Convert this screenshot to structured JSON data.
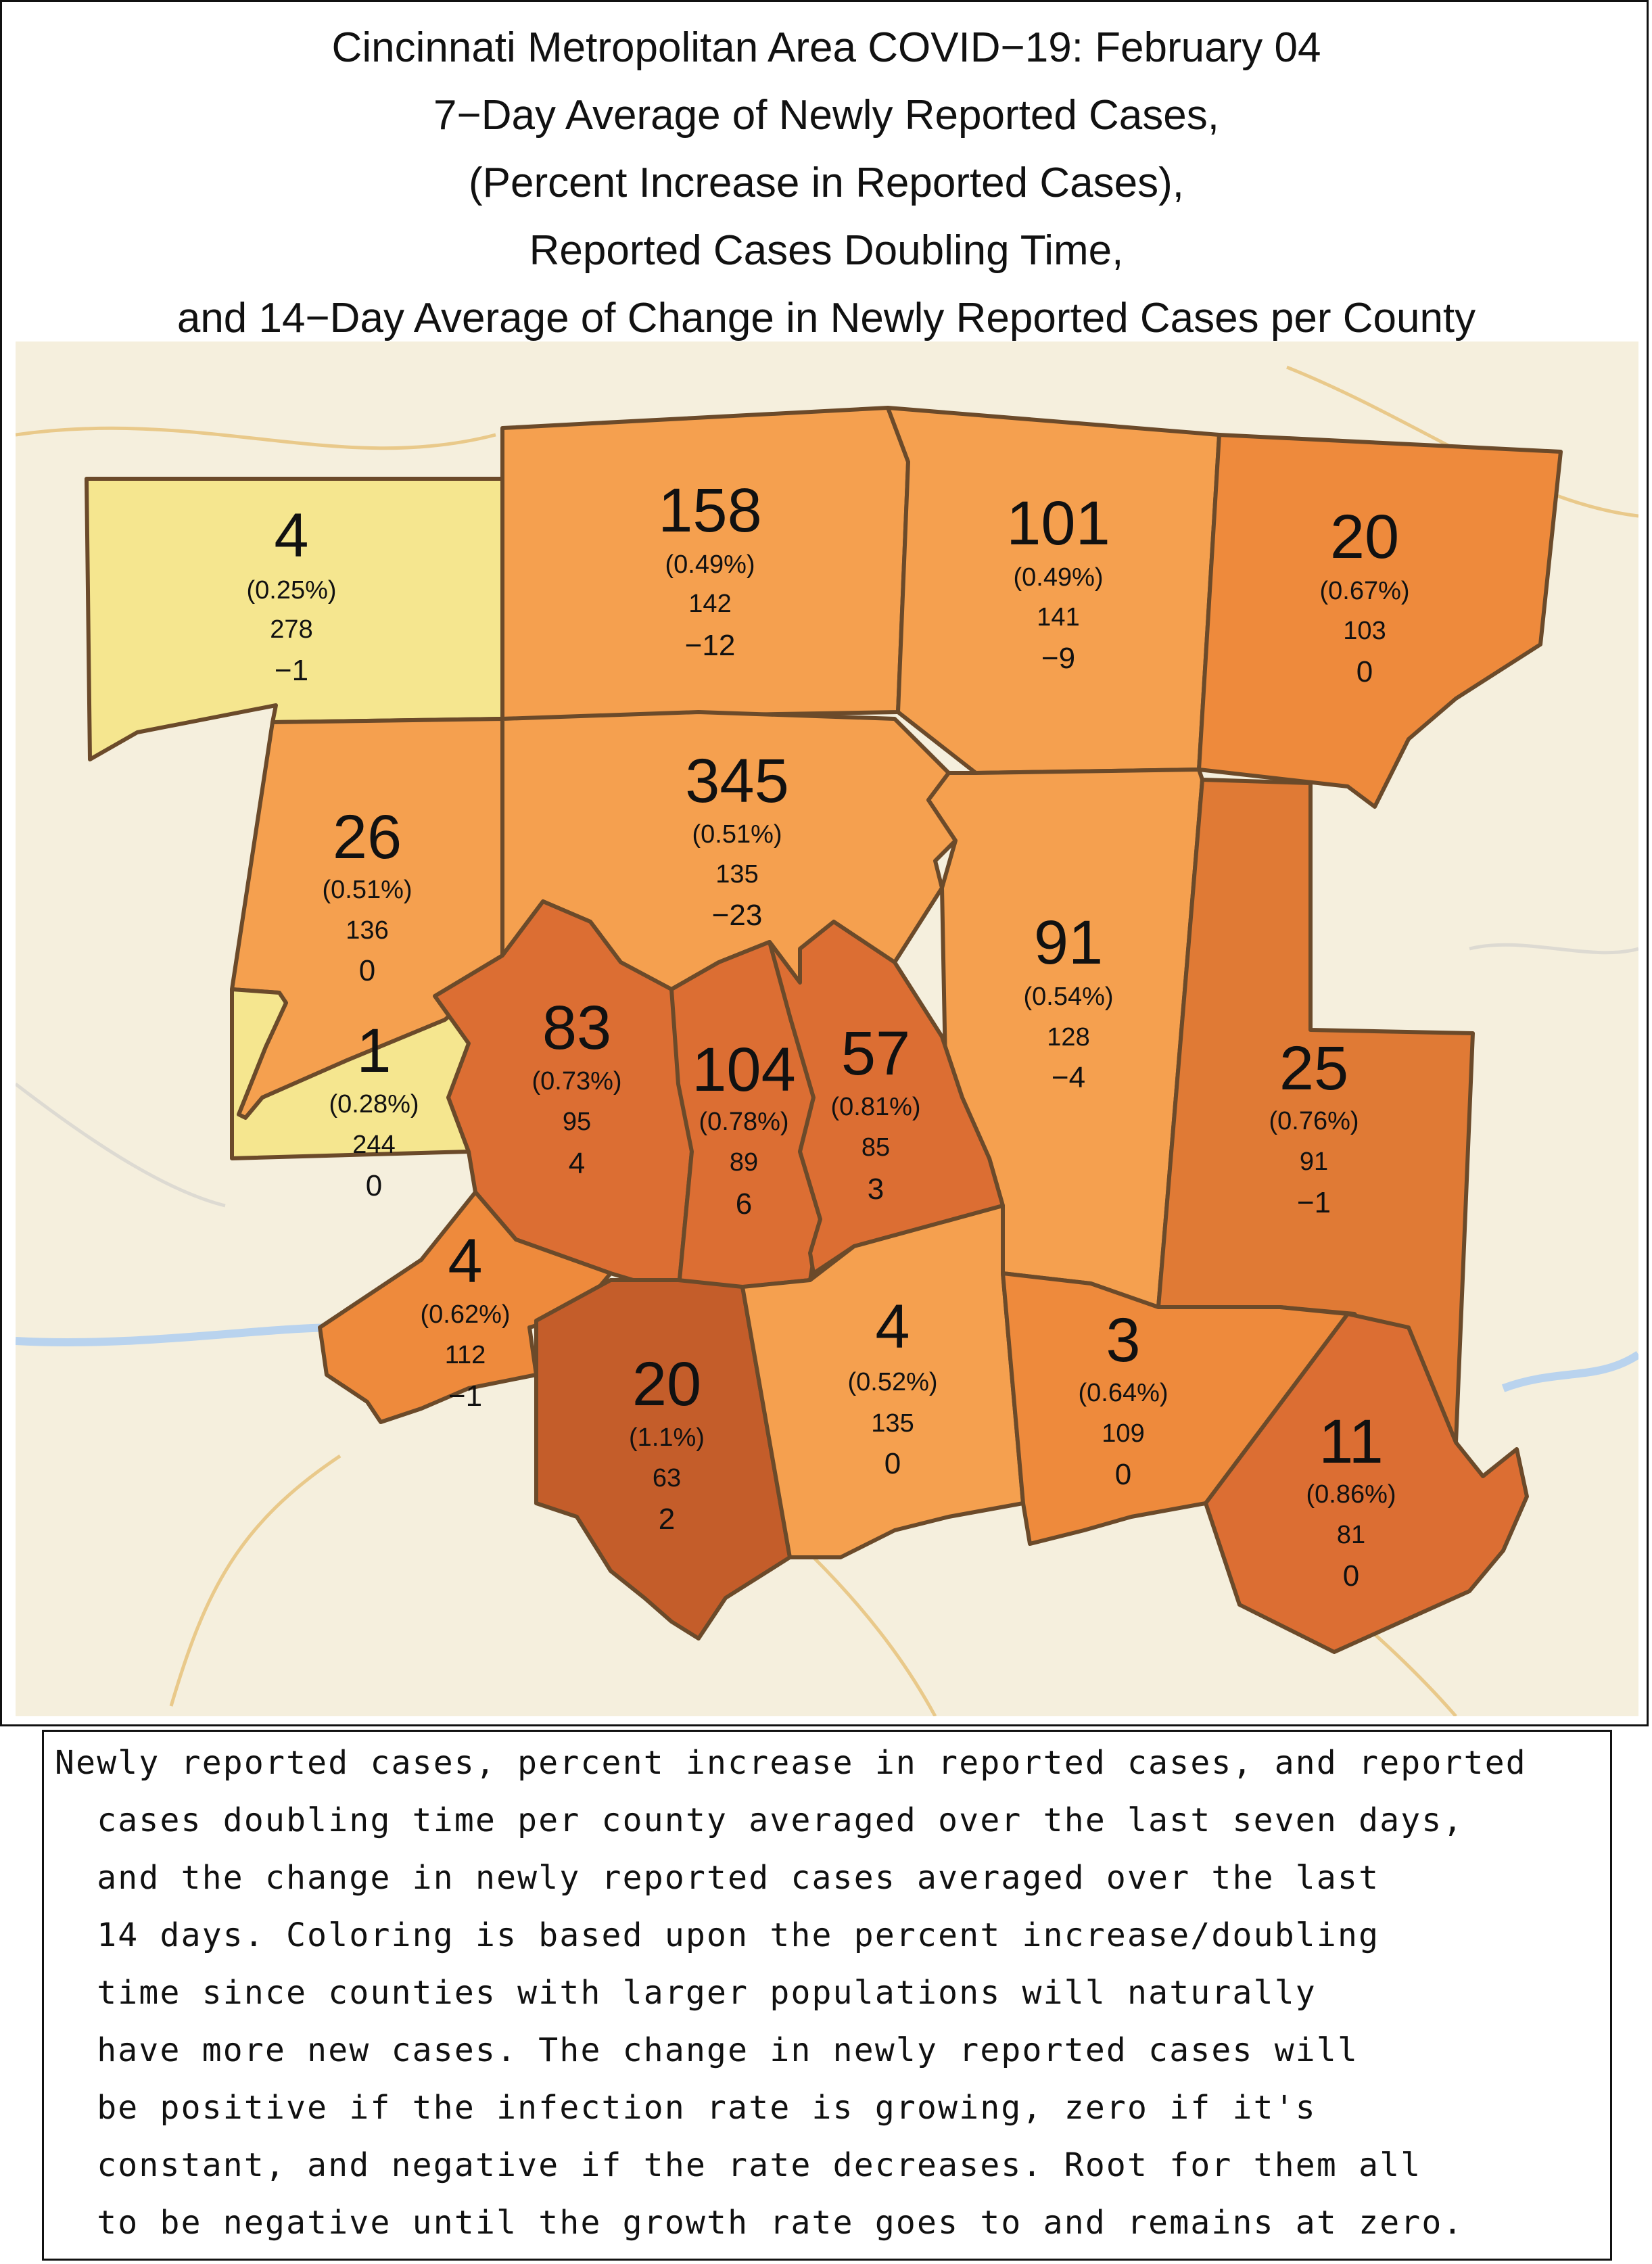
{
  "title": {
    "lines": [
      "Cincinnati Metropolitan Area COVID−19: February 04",
      "7−Day Average of Newly Reported Cases,",
      "(Percent Increase in Reported Cases),",
      "Reported Cases Doubling Time,",
      "and 14−Day Average of Change in Newly Reported Cases per County"
    ]
  },
  "colors": {
    "yellow": "#f5e68f",
    "light_orange": "#f5a04f",
    "orange": "#ee8a3c",
    "dark_orange": "#dc6e33",
    "brown": "#c45d2a",
    "map_bg": "#f5efdd",
    "border": "#6b4a2a"
  },
  "counties": [
    {
      "cases": "4",
      "pct": "(0.25%)",
      "doubling": "278",
      "change": "−1"
    },
    {
      "cases": "158",
      "pct": "(0.49%)",
      "doubling": "142",
      "change": "−12"
    },
    {
      "cases": "101",
      "pct": "(0.49%)",
      "doubling": "141",
      "change": "−9"
    },
    {
      "cases": "20",
      "pct": "(0.67%)",
      "doubling": "103",
      "change": "0"
    },
    {
      "cases": "26",
      "pct": "(0.51%)",
      "doubling": "136",
      "change": "0"
    },
    {
      "cases": "345",
      "pct": "(0.51%)",
      "doubling": "135",
      "change": "−23"
    },
    {
      "cases": "91",
      "pct": "(0.54%)",
      "doubling": "128",
      "change": "−4"
    },
    {
      "cases": "1",
      "pct": "(0.28%)",
      "doubling": "244",
      "change": "0"
    },
    {
      "cases": "83",
      "pct": "(0.73%)",
      "doubling": "95",
      "change": "4"
    },
    {
      "cases": "104",
      "pct": "(0.78%)",
      "doubling": "89",
      "change": "6"
    },
    {
      "cases": "57",
      "pct": "(0.81%)",
      "doubling": "85",
      "change": "3"
    },
    {
      "cases": "25",
      "pct": "(0.76%)",
      "doubling": "91",
      "change": "−1"
    },
    {
      "cases": "4",
      "pct": "(0.62%)",
      "doubling": "112",
      "change": "−1"
    },
    {
      "cases": "20",
      "pct": "(1.1%)",
      "doubling": "63",
      "change": "2"
    },
    {
      "cases": "4",
      "pct": "(0.52%)",
      "doubling": "135",
      "change": "0"
    },
    {
      "cases": "3",
      "pct": "(0.64%)",
      "doubling": "109",
      "change": "0"
    },
    {
      "cases": "11",
      "pct": "(0.86%)",
      "doubling": "81",
      "change": "0"
    }
  ],
  "caption": {
    "lines": [
      "Newly reported cases, percent increase in reported cases, and reported",
      "  cases doubling time per county averaged over the last seven days,",
      "  and the change in newly reported cases averaged over the last",
      "  14 days. Coloring is based upon the percent increase/doubling",
      "  time since counties with larger populations will naturally",
      "  have more new cases. The change in newly reported cases will",
      "  be positive if the infection rate is growing, zero if it's",
      "  constant, and negative if the rate decreases. Root for them all",
      "  to be negative until the growth rate goes to and remains at zero."
    ]
  }
}
